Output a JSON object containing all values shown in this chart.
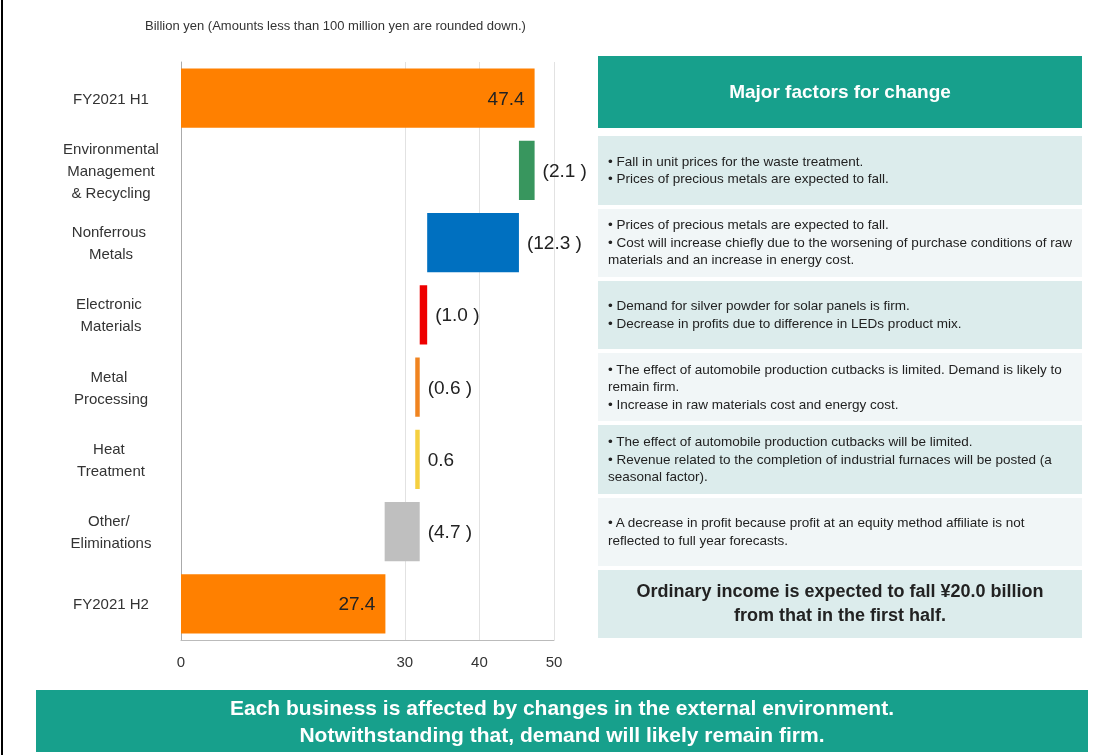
{
  "chart_data": {
    "type": "bar",
    "orientation": "horizontal",
    "categories": [
      "FY2021 H1",
      "Environmental Management & Recycling",
      "Nonferrous Metals",
      "Electronic Materials",
      "Metal Processing",
      "Heat Treatment",
      "Other/ Eliminations",
      "FY2021 H2"
    ],
    "values": [
      47.4,
      -2.1,
      -12.3,
      -1.0,
      -0.6,
      0.6,
      -4.7,
      27.4
    ],
    "base": [
      0,
      47.4,
      45.3,
      33.0,
      32.0,
      31.4,
      32.0,
      0
    ],
    "colors": [
      "#ff8000",
      "#38965e",
      "#0070c0",
      "#ee0000",
      "#f08420",
      "#f5d040",
      "#bfbfbf",
      "#ff8000"
    ],
    "value_labels": [
      "47.4",
      "(2.1 )",
      "(12.3 )",
      "(1.0 )",
      "(0.6 )",
      "0.6",
      "(4.7 )",
      "27.4"
    ],
    "xlim": [
      0,
      50
    ],
    "xticks": [
      0,
      30,
      40,
      50
    ],
    "grid": "x",
    "annotations": [
      "Billion yen (Amounts less than 100 million yen are rounded down.)",
      "Major factors for change",
      "• Fall in unit prices for the waste treatment.\n• Prices of precious metals are expected to fall.",
      "• Prices of precious metals are expected to fall.\n• Cost will increase chiefly due to the worsening of purchase conditions of raw materials and an increase in energy cost.",
      "• Demand for silver powder for solar panels is firm.\n• Decrease in profits due to difference in LEDs product mix.",
      "• The effect of automobile production cutbacks is limited. Demand is likely to remain firm.\n• Increase in raw materials cost and energy cost.",
      "• The effect of automobile production cutbacks will be limited.\n• Revenue related to the completion of industrial furnaces will be posted (a seasonal factor).",
      "• A decrease in profit because profit at an equity method affiliate is not reflected to full year forecasts.",
      "Ordinary income is expected to fall ¥20.0 billion from that in the first half.",
      "Each business is affected by changes in the external environment. Notwithstanding that, demand will likely remain firm."
    ]
  }
}
